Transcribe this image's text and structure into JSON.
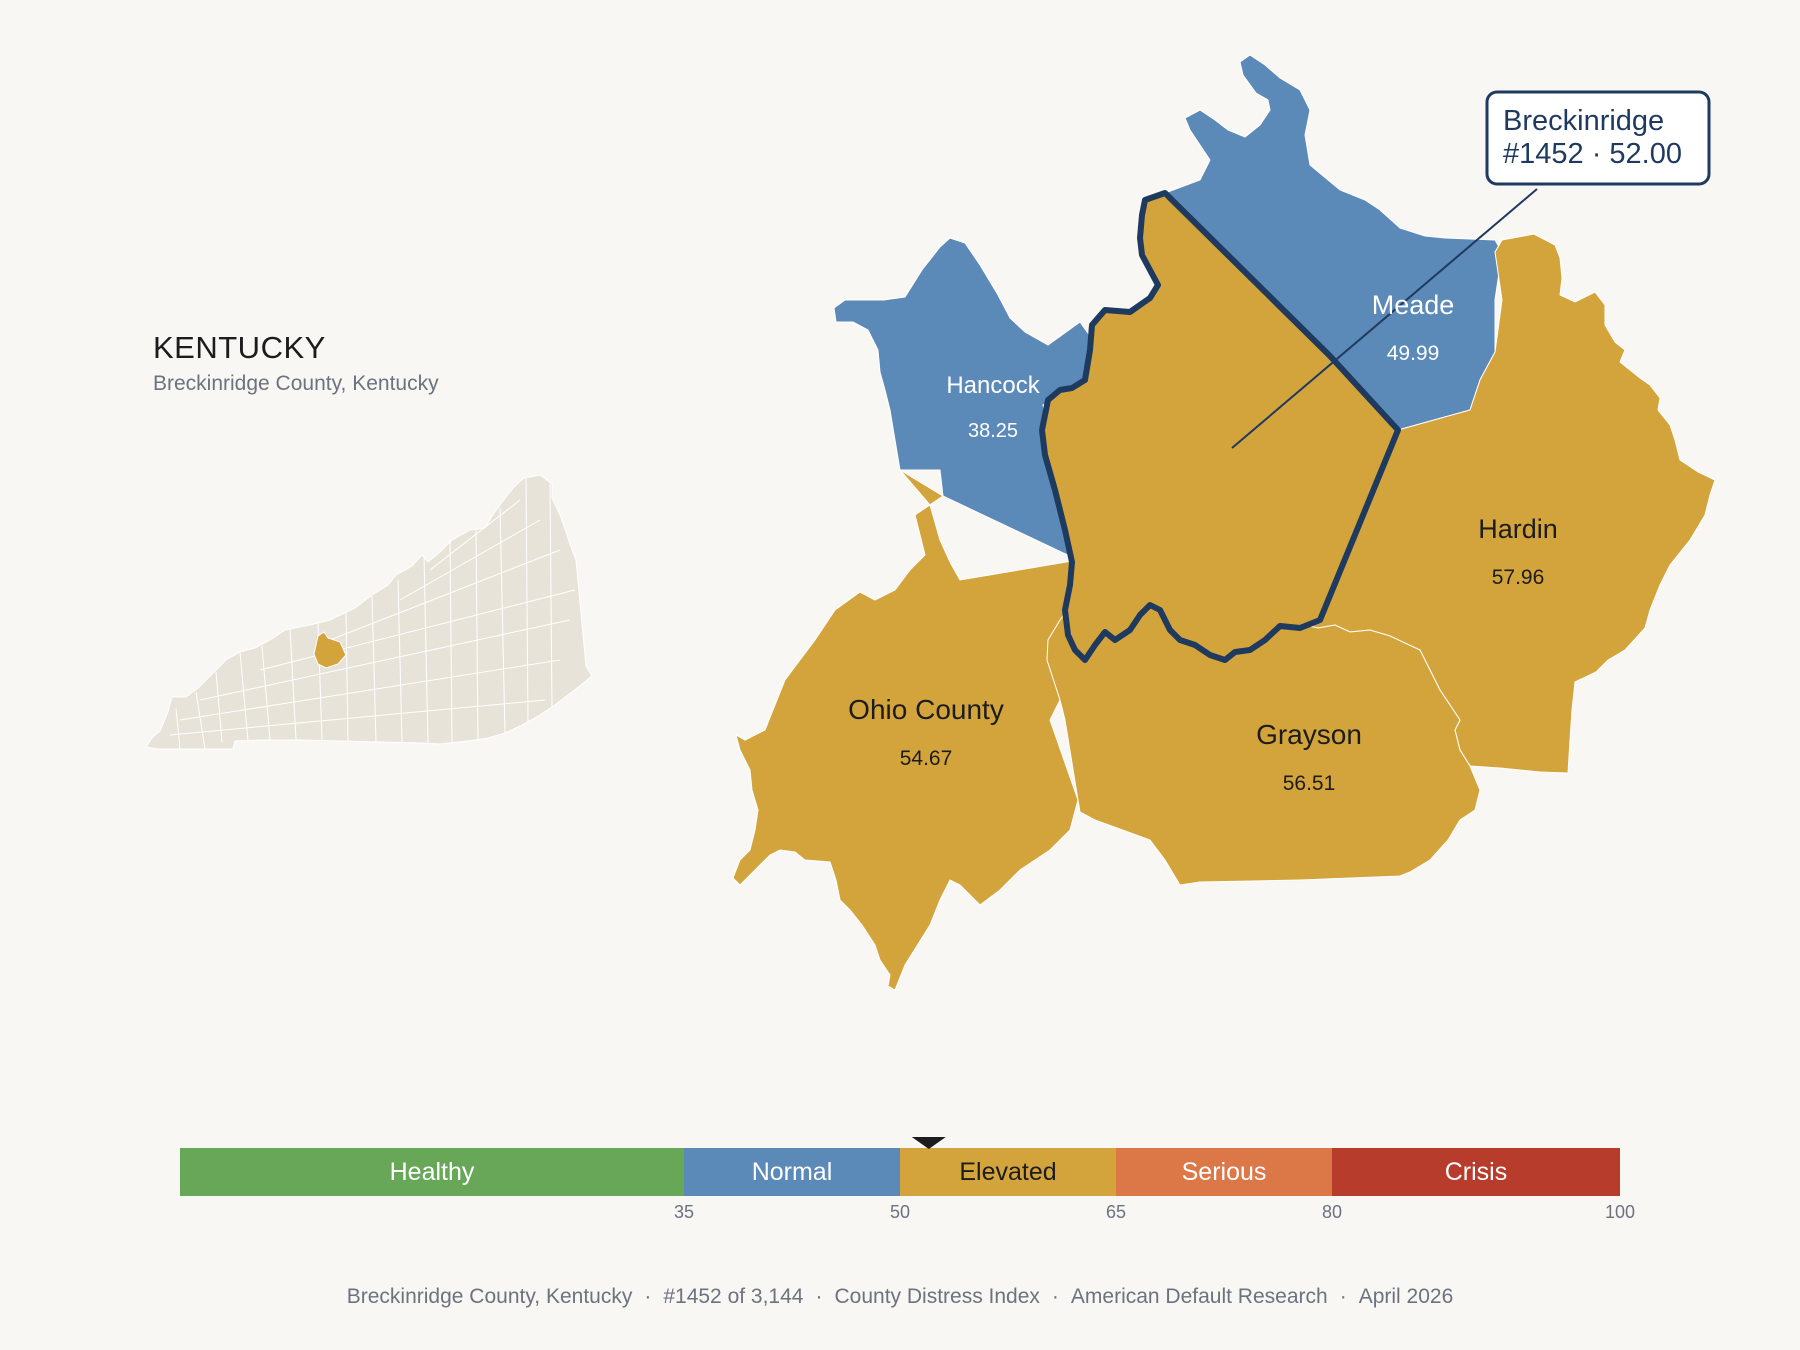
{
  "header": {
    "state_title": "KENTUCKY",
    "subtitle": "Breckinridge County, Kentucky"
  },
  "map": {
    "highlight": {
      "name": "Breckinridge",
      "line1": "Breckinridge",
      "line2": "#1452 · 52.00",
      "rank": 1452,
      "score": 52.0,
      "color": "#d4a43c",
      "outline_color": "#1e3a5f"
    },
    "counties": [
      {
        "id": "hancock",
        "name": "Hancock",
        "score_text": "38.25",
        "score": 38.25,
        "band": "Normal",
        "color": "#5b89b8",
        "text_color": "#ffffff"
      },
      {
        "id": "meade",
        "name": "Meade",
        "score_text": "49.99",
        "score": 49.99,
        "band": "Normal",
        "color": "#5b89b8",
        "text_color": "#ffffff"
      },
      {
        "id": "hardin",
        "name": "Hardin",
        "score_text": "57.96",
        "score": 57.96,
        "band": "Elevated",
        "color": "#d4a43c",
        "text_color": "#1c1c1c"
      },
      {
        "id": "ohio",
        "name": "Ohio County",
        "score_text": "54.67",
        "score": 54.67,
        "band": "Elevated",
        "color": "#d4a43c",
        "text_color": "#1c1c1c"
      },
      {
        "id": "grayson",
        "name": "Grayson",
        "score_text": "56.51",
        "score": 56.51,
        "band": "Elevated",
        "color": "#d4a43c",
        "text_color": "#1c1c1c"
      }
    ]
  },
  "scale": {
    "min": 0,
    "max": 100,
    "marker_value": 52.0,
    "segments": [
      {
        "label": "Healthy",
        "from": 0,
        "to": 35,
        "color": "#68a758",
        "text_color": "#ffffff"
      },
      {
        "label": "Normal",
        "from": 35,
        "to": 50,
        "color": "#5b89b8",
        "text_color": "#ffffff"
      },
      {
        "label": "Elevated",
        "from": 50,
        "to": 65,
        "color": "#d4a43c",
        "text_color": "#1c1c1c"
      },
      {
        "label": "Serious",
        "from": 65,
        "to": 80,
        "color": "#dc7848",
        "text_color": "#ffffff"
      },
      {
        "label": "Crisis",
        "from": 80,
        "to": 100,
        "color": "#b83c2c",
        "text_color": "#ffffff"
      }
    ],
    "ticks": [
      "35",
      "50",
      "65",
      "80",
      "100"
    ]
  },
  "footer": {
    "county": "Breckinridge County, Kentucky",
    "rank": "#1452 of 3,144",
    "index": "County Distress Index",
    "source": "American Default Research",
    "date": "April 2026"
  },
  "colors": {
    "background": "#f9f7f3",
    "inset_fill": "#e8e3d9",
    "normal": "#5b89b8",
    "elevated": "#d4a43c"
  }
}
